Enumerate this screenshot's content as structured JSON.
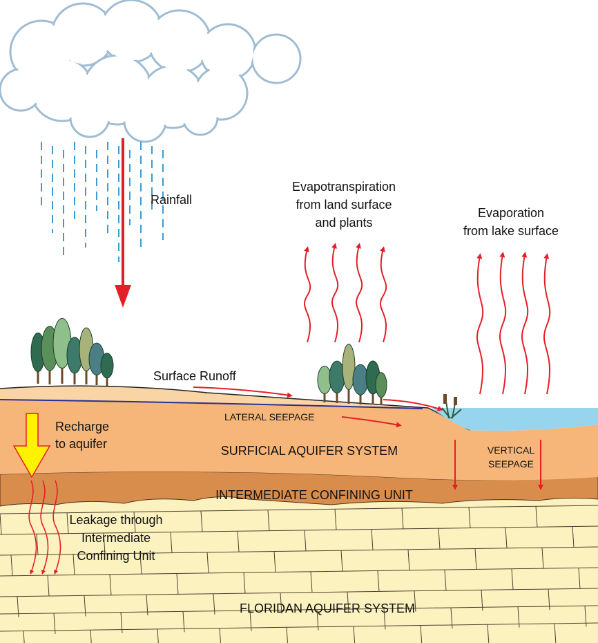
{
  "labels": {
    "rainfall": "Rainfall",
    "evapotranspiration": [
      "Evapotranspiration",
      "from land surface",
      "and plants"
    ],
    "evaporation": [
      "Evaporation",
      "from lake surface"
    ],
    "surface_runoff": "Surface Runoff",
    "lateral_seepage": "LATERAL SEEPAGE",
    "recharge": [
      "Recharge",
      "to aquifer"
    ],
    "surficial_aquifer": "SURFICIAL AQUIFER SYSTEM",
    "vertical_seepage": [
      "VERTICAL",
      "SEEPAGE"
    ],
    "intermediate_unit": "INTERMEDIATE CONFINING UNIT",
    "leakage": [
      "Leakage through",
      "Intermediate",
      "Confining Unit"
    ],
    "floridan_aquifer": "FLORIDAN AQUIFER SYSTEM"
  }
}
